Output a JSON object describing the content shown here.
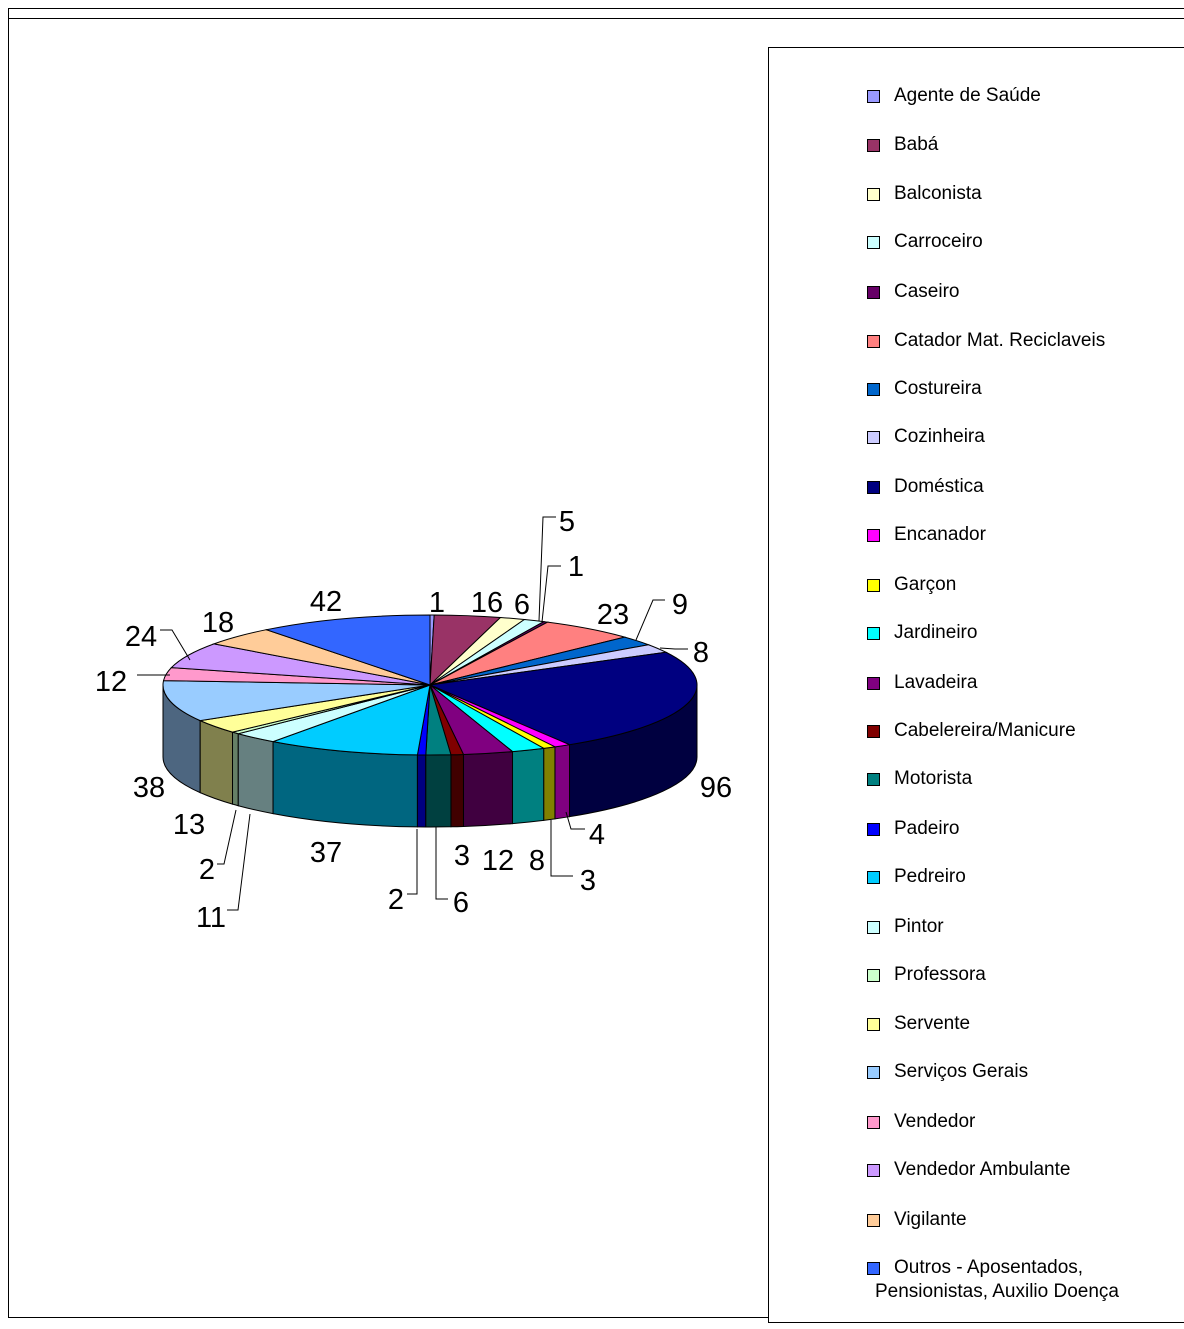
{
  "chart_data": {
    "type": "pie",
    "style": "3d-exploded-free",
    "labels": [
      "Agente de Saúde",
      "Babá",
      "Balconista",
      "Carroceiro",
      "Caseiro",
      "Catador Mat. Reciclaveis",
      "Costureira",
      "Cozinheira",
      "Doméstica",
      "Encanador",
      "Garçon",
      "Jardineiro",
      "Lavadeira",
      "Cabelereira/Manicure",
      "Motorista",
      "Padeiro",
      "Pedreiro",
      "Pintor",
      "Professora",
      "Servente",
      "Serviços Gerais",
      "Vendedor",
      "Vendedor Ambulante",
      "Vigilante",
      "Outros - Aposentados,\nPensionistas, Auxilio Doença"
    ],
    "values": [
      1,
      16,
      6,
      5,
      1,
      23,
      9,
      8,
      96,
      4,
      3,
      8,
      12,
      3,
      6,
      2,
      37,
      11,
      2,
      13,
      38,
      12,
      24,
      18,
      42
    ],
    "colors": [
      "#9999FF",
      "#993366",
      "#FFFFCC",
      "#CCFFFF",
      "#660066",
      "#FF8080",
      "#0066CC",
      "#CCCCFF",
      "#000080",
      "#FF00FF",
      "#FFFF00",
      "#00FFFF",
      "#800080",
      "#800000",
      "#008080",
      "#0000FF",
      "#00CCFF",
      "#CCFFFF",
      "#CCFFCC",
      "#FFFF99",
      "#99CCFF",
      "#FF99CC",
      "#CC99FF",
      "#FFCC99",
      "#3366FF"
    ],
    "legend_position": "right"
  }
}
